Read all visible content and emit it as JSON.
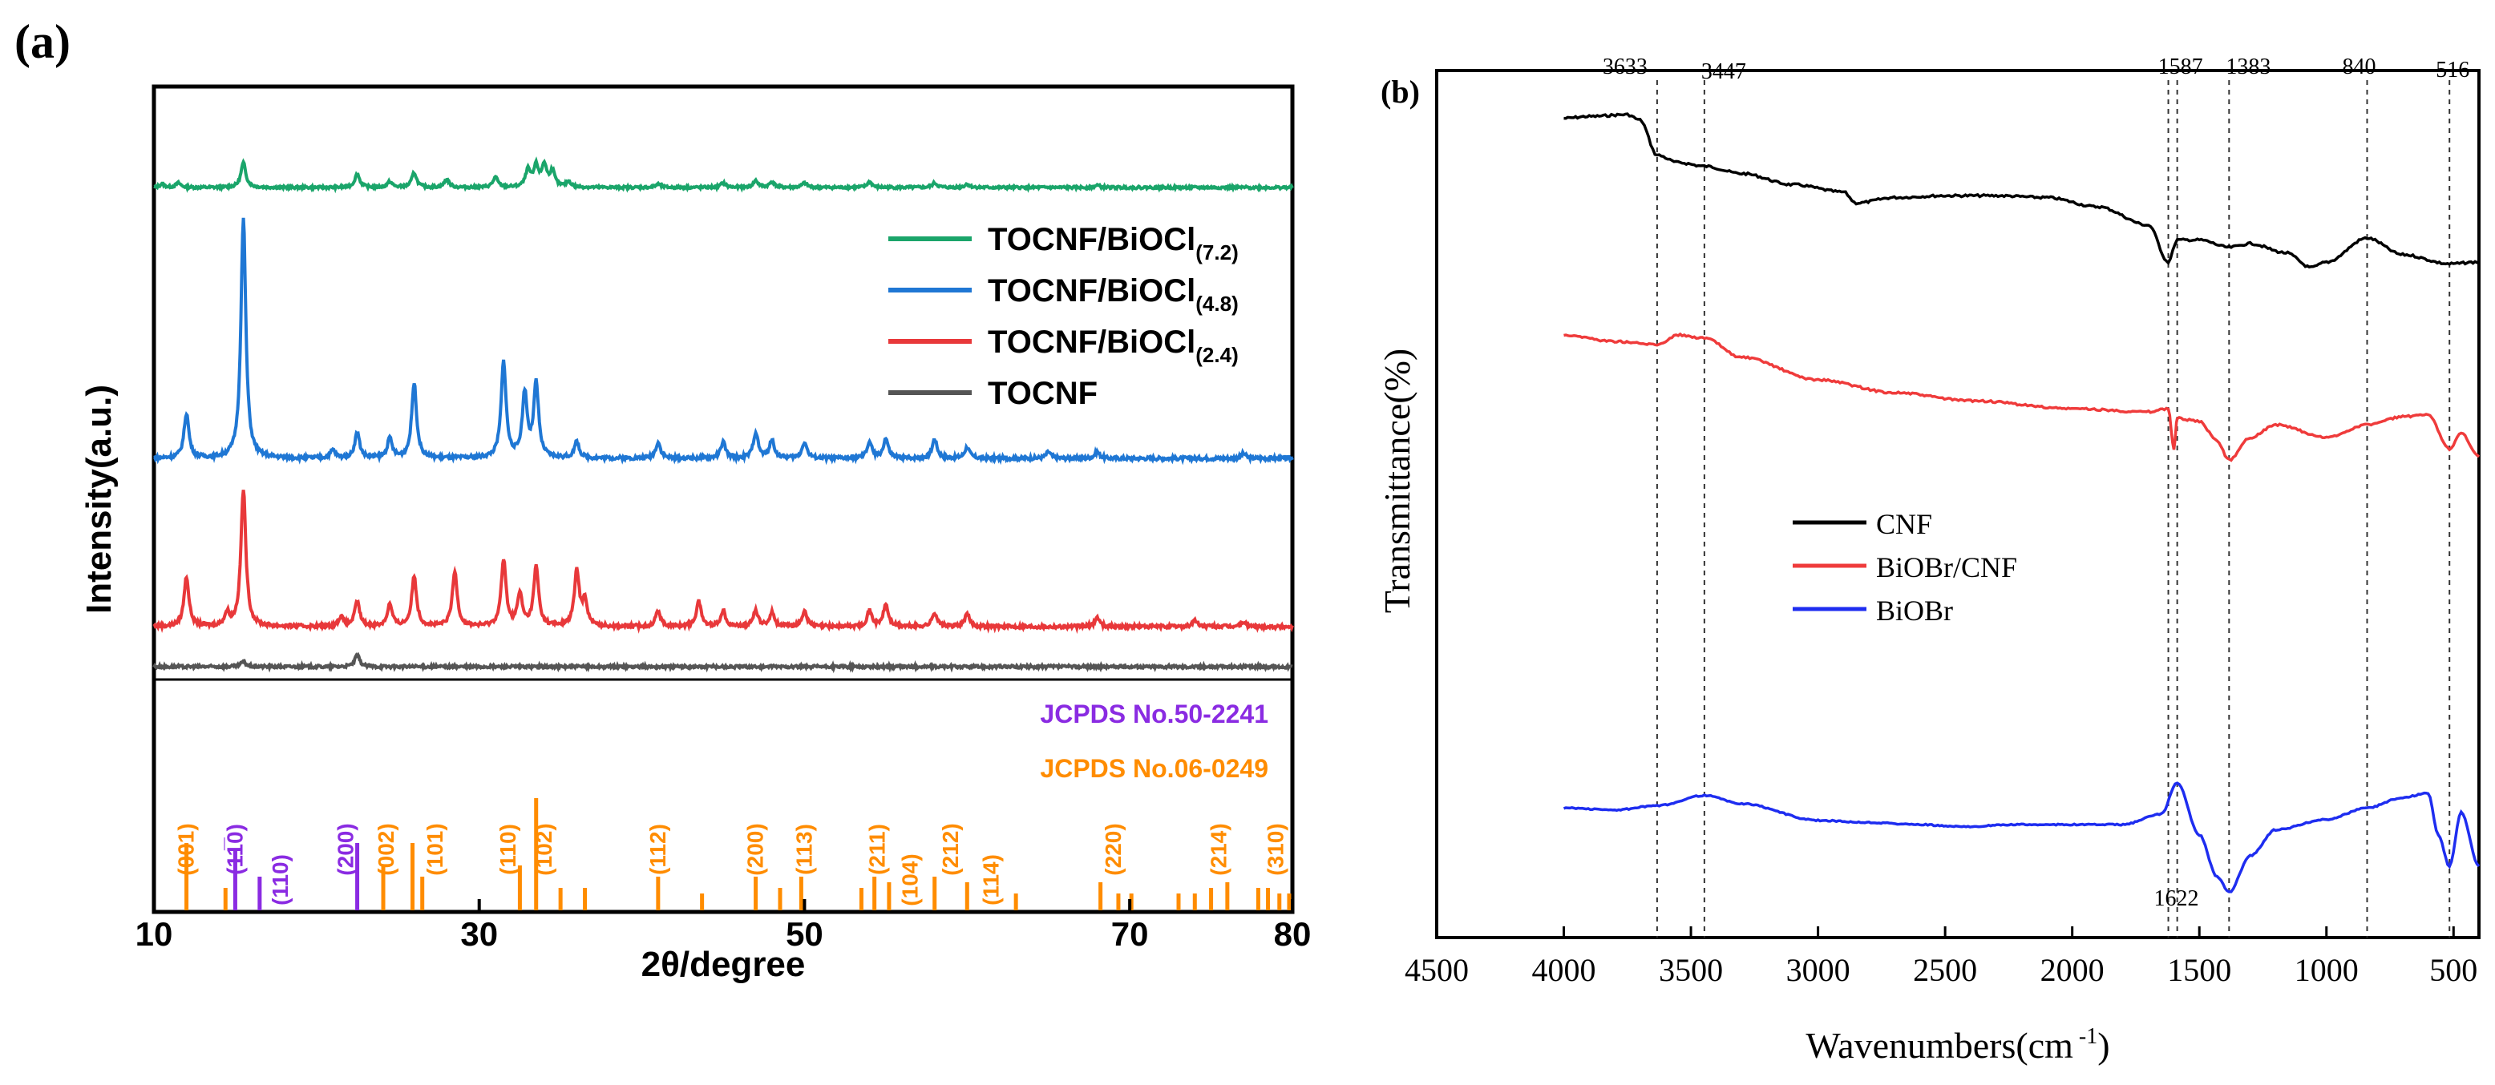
{
  "chart_data": [
    {
      "panel": "(a)",
      "type": "line",
      "xlabel": "2θ/degree",
      "ylabel": "Intensity(a.u.)",
      "xlim": [
        10,
        80
      ],
      "xticks": [
        10,
        30,
        50,
        70,
        80
      ],
      "legend_position": "top-right",
      "series": [
        {
          "name": "TOCNF/BiOCl",
          "subscript": "(7.2)",
          "color": "#1aa56a",
          "peaks": [
            [
              10.5,
              3
            ],
            [
              11.5,
              4
            ],
            [
              15.5,
              22
            ],
            [
              22.5,
              12
            ],
            [
              24.5,
              5
            ],
            [
              26.0,
              13
            ],
            [
              28.0,
              7
            ],
            [
              31.0,
              9
            ],
            [
              33.0,
              15
            ],
            [
              33.5,
              18
            ],
            [
              34.0,
              19
            ],
            [
              34.5,
              14
            ],
            [
              35.5,
              5
            ],
            [
              41.0,
              3
            ],
            [
              45.0,
              4
            ],
            [
              47.0,
              6
            ],
            [
              48.0,
              5
            ],
            [
              50.0,
              4
            ],
            [
              54.0,
              5
            ],
            [
              58.0,
              4
            ],
            [
              60.0,
              3
            ],
            [
              68.0,
              2
            ]
          ]
        },
        {
          "name": "TOCNF/BiOCl",
          "subscript": "(4.8)",
          "color": "#1f77d4",
          "peaks": [
            [
              12.0,
              28
            ],
            [
              15.5,
              150
            ],
            [
              21.0,
              5
            ],
            [
              22.5,
              16
            ],
            [
              24.5,
              12
            ],
            [
              26.0,
              47
            ],
            [
              31.5,
              60
            ],
            [
              32.8,
              40
            ],
            [
              33.5,
              46
            ],
            [
              36.0,
              10
            ],
            [
              41.0,
              10
            ],
            [
              45.0,
              10
            ],
            [
              47.0,
              16
            ],
            [
              48.0,
              11
            ],
            [
              50.0,
              10
            ],
            [
              54.0,
              10
            ],
            [
              55.0,
              12
            ],
            [
              58.0,
              12
            ],
            [
              60.0,
              7
            ],
            [
              65.0,
              4
            ],
            [
              68.0,
              4
            ],
            [
              77.0,
              3
            ]
          ]
        },
        {
          "name": "TOCNF/BiOCl",
          "subscript": "(2.4)",
          "color": "#e8383a",
          "peaks": [
            [
              12.0,
              32
            ],
            [
              14.5,
              8
            ],
            [
              15.5,
              88
            ],
            [
              21.5,
              6
            ],
            [
              22.5,
              16
            ],
            [
              24.5,
              14
            ],
            [
              26.0,
              32
            ],
            [
              28.5,
              35
            ],
            [
              31.5,
              42
            ],
            [
              32.5,
              20
            ],
            [
              33.5,
              38
            ],
            [
              36.0,
              35
            ],
            [
              36.5,
              16
            ],
            [
              41.0,
              10
            ],
            [
              43.5,
              16
            ],
            [
              45.0,
              10
            ],
            [
              47.0,
              10
            ],
            [
              48.0,
              9
            ],
            [
              50.0,
              10
            ],
            [
              54.0,
              10
            ],
            [
              55.0,
              14
            ],
            [
              58.0,
              9
            ],
            [
              60.0,
              8
            ],
            [
              68.0,
              6
            ],
            [
              74.0,
              4
            ],
            [
              77.0,
              3
            ]
          ]
        },
        {
          "name": "TOCNF",
          "subscript": "",
          "color": "#555555",
          "peaks": [
            [
              15.5,
              4
            ],
            [
              22.5,
              9
            ]
          ]
        }
      ],
      "reference_labels": [
        "JCPDS No.50-2241",
        "JCPDS No.06-0249"
      ],
      "reference_colors": {
        "jcpds_50_2241": "#8a2be2",
        "jcpds_06_0249": "#ff8c00"
      },
      "reference_lines": [
        {
          "x": 12.0,
          "h": 0.6,
          "ref": "06-0249"
        },
        {
          "x": 15.0,
          "h": 0.55,
          "ref": "50-2241"
        },
        {
          "x": 16.5,
          "h": 0.3,
          "ref": "50-2241"
        },
        {
          "x": 22.5,
          "h": 0.6,
          "ref": "50-2241"
        },
        {
          "x": 14.4,
          "h": 0.2,
          "ref": "06-0249"
        },
        {
          "x": 24.1,
          "h": 0.4,
          "ref": "06-0249"
        },
        {
          "x": 25.9,
          "h": 0.6,
          "ref": "06-0249"
        },
        {
          "x": 26.5,
          "h": 0.3,
          "ref": "06-0249"
        },
        {
          "x": 32.5,
          "h": 0.4,
          "ref": "06-0249"
        },
        {
          "x": 33.5,
          "h": 1.0,
          "ref": "06-0249"
        },
        {
          "x": 35.0,
          "h": 0.2,
          "ref": "06-0249"
        },
        {
          "x": 36.5,
          "h": 0.2,
          "ref": "06-0249"
        },
        {
          "x": 41.0,
          "h": 0.3,
          "ref": "06-0249"
        },
        {
          "x": 43.7,
          "h": 0.15,
          "ref": "06-0249"
        },
        {
          "x": 47.0,
          "h": 0.3,
          "ref": "06-0249"
        },
        {
          "x": 48.5,
          "h": 0.2,
          "ref": "06-0249"
        },
        {
          "x": 49.8,
          "h": 0.3,
          "ref": "06-0249"
        },
        {
          "x": 53.5,
          "h": 0.2,
          "ref": "06-0249"
        },
        {
          "x": 54.3,
          "h": 0.3,
          "ref": "06-0249"
        },
        {
          "x": 55.2,
          "h": 0.25,
          "ref": "06-0249"
        },
        {
          "x": 58.0,
          "h": 0.3,
          "ref": "06-0249"
        },
        {
          "x": 60.0,
          "h": 0.25,
          "ref": "06-0249"
        },
        {
          "x": 63.0,
          "h": 0.15,
          "ref": "06-0249"
        },
        {
          "x": 68.2,
          "h": 0.25,
          "ref": "06-0249"
        },
        {
          "x": 69.3,
          "h": 0.15,
          "ref": "06-0249"
        },
        {
          "x": 70.1,
          "h": 0.15,
          "ref": "06-0249"
        },
        {
          "x": 73.0,
          "h": 0.15,
          "ref": "06-0249"
        },
        {
          "x": 74.0,
          "h": 0.15,
          "ref": "06-0249"
        },
        {
          "x": 75.0,
          "h": 0.2,
          "ref": "06-0249"
        },
        {
          "x": 76.0,
          "h": 0.25,
          "ref": "06-0249"
        },
        {
          "x": 77.9,
          "h": 0.2,
          "ref": "06-0249"
        },
        {
          "x": 78.5,
          "h": 0.2,
          "ref": "06-0249"
        },
        {
          "x": 79.2,
          "h": 0.15,
          "ref": "06-0249"
        },
        {
          "x": 79.8,
          "h": 0.15,
          "ref": "06-0249"
        }
      ],
      "miller_labels": [
        {
          "x": 12.0,
          "text": "(001)",
          "ref": "06-0249",
          "row": 0
        },
        {
          "x": 15.0,
          "text": "(11̅0)",
          "ref": "50-2241",
          "row": 0
        },
        {
          "x": 17.8,
          "text": "(110)",
          "ref": "50-2241",
          "row": 1
        },
        {
          "x": 21.8,
          "text": "(200)",
          "ref": "50-2241",
          "row": 0
        },
        {
          "x": 24.3,
          "text": "(002)",
          "ref": "06-0249",
          "row": 0
        },
        {
          "x": 27.3,
          "text": "(101)",
          "ref": "06-0249",
          "row": 0
        },
        {
          "x": 31.8,
          "text": "(110)",
          "ref": "06-0249",
          "row": 0
        },
        {
          "x": 34.0,
          "text": "(102)",
          "ref": "06-0249",
          "row": 0
        },
        {
          "x": 41.0,
          "text": "(112)",
          "ref": "06-0249",
          "row": 0
        },
        {
          "x": 47.0,
          "text": "(200)",
          "ref": "06-0249",
          "row": 0
        },
        {
          "x": 50.0,
          "text": "(113)",
          "ref": "06-0249",
          "row": 0
        },
        {
          "x": 54.5,
          "text": "(211)",
          "ref": "06-0249",
          "row": 0
        },
        {
          "x": 56.5,
          "text": "(104)",
          "ref": "06-0249",
          "row": 1
        },
        {
          "x": 59.0,
          "text": "(212)",
          "ref": "06-0249",
          "row": 0
        },
        {
          "x": 61.5,
          "text": "(114)",
          "ref": "06-0249",
          "row": 1
        },
        {
          "x": 69.0,
          "text": "(220)",
          "ref": "06-0249",
          "row": 0
        },
        {
          "x": 75.5,
          "text": "(214)",
          "ref": "06-0249",
          "row": 0
        },
        {
          "x": 79.0,
          "text": "(310)",
          "ref": "06-0249",
          "row": 0
        }
      ]
    },
    {
      "panel": "(b)",
      "type": "line",
      "xlabel": "Wavenumbers(cm",
      "xlabel_sup": " -1",
      "xlabel_end": ")",
      "ylabel": "Transmittance(%)",
      "xlim": [
        4500,
        400
      ],
      "xticks": [
        4500,
        4000,
        3500,
        3000,
        2500,
        2000,
        1500,
        1000,
        500
      ],
      "legend_position": "center-left",
      "vlines": [
        {
          "x": 3633,
          "label": "3633"
        },
        {
          "x": 3447,
          "label": "3447"
        },
        {
          "x": 1622,
          "label": "1622"
        },
        {
          "x": 1587,
          "label": "1587"
        },
        {
          "x": 1383,
          "label": "1383"
        },
        {
          "x": 840,
          "label": "840"
        },
        {
          "x": 516,
          "label": "516"
        }
      ],
      "series": [
        {
          "name": "CNF",
          "color": "#000000",
          "points": [
            [
              4000,
              0.12
            ],
            [
              3900,
              0.11
            ],
            [
              3750,
              0.1
            ],
            [
              3700,
              0.13
            ],
            [
              3633,
              0.32
            ],
            [
              3550,
              0.36
            ],
            [
              3447,
              0.38
            ],
            [
              3300,
              0.42
            ],
            [
              3100,
              0.48
            ],
            [
              2900,
              0.52
            ],
            [
              2850,
              0.58
            ],
            [
              2700,
              0.55
            ],
            [
              2500,
              0.54
            ],
            [
              2300,
              0.54
            ],
            [
              2100,
              0.55
            ],
            [
              1900,
              0.6
            ],
            [
              1700,
              0.7
            ],
            [
              1622,
              0.9
            ],
            [
              1587,
              0.78
            ],
            [
              1500,
              0.78
            ],
            [
              1383,
              0.82
            ],
            [
              1300,
              0.8
            ],
            [
              1160,
              0.85
            ],
            [
              1060,
              0.93
            ],
            [
              1000,
              0.9
            ],
            [
              840,
              0.77
            ],
            [
              700,
              0.86
            ],
            [
              516,
              0.91
            ],
            [
              400,
              0.9
            ]
          ]
        },
        {
          "name": "BiOBr/CNF",
          "color": "#ef3b3b",
          "points": [
            [
              4000,
              0.24
            ],
            [
              3800,
              0.28
            ],
            [
              3633,
              0.3
            ],
            [
              3550,
              0.24
            ],
            [
              3447,
              0.26
            ],
            [
              3300,
              0.38
            ],
            [
              3000,
              0.52
            ],
            [
              2700,
              0.6
            ],
            [
              2400,
              0.65
            ],
            [
              2000,
              0.7
            ],
            [
              1700,
              0.72
            ],
            [
              1622,
              0.7
            ],
            [
              1600,
              0.95
            ],
            [
              1587,
              0.76
            ],
            [
              1500,
              0.78
            ],
            [
              1430,
              0.9
            ],
            [
              1383,
              1.02
            ],
            [
              1300,
              0.88
            ],
            [
              1200,
              0.8
            ],
            [
              1000,
              0.88
            ],
            [
              840,
              0.8
            ],
            [
              700,
              0.75
            ],
            [
              600,
              0.74
            ],
            [
              516,
              0.95
            ],
            [
              470,
              0.85
            ],
            [
              400,
              1.0
            ]
          ]
        },
        {
          "name": "BiOBr",
          "color": "#1e2df0",
          "points": [
            [
              4000,
              0.14
            ],
            [
              3800,
              0.16
            ],
            [
              3633,
              0.12
            ],
            [
              3447,
              0.02
            ],
            [
              3300,
              0.1
            ],
            [
              3000,
              0.26
            ],
            [
              2800,
              0.28
            ],
            [
              2600,
              0.3
            ],
            [
              2450,
              0.32
            ],
            [
              2200,
              0.3
            ],
            [
              1800,
              0.3
            ],
            [
              1650,
              0.2
            ],
            [
              1587,
              -0.1
            ],
            [
              1500,
              0.4
            ],
            [
              1430,
              0.8
            ],
            [
              1383,
              0.95
            ],
            [
              1300,
              0.6
            ],
            [
              1200,
              0.35
            ],
            [
              1000,
              0.25
            ],
            [
              840,
              0.14
            ],
            [
              700,
              0.04
            ],
            [
              600,
              0.0
            ],
            [
              560,
              0.4
            ],
            [
              516,
              0.7
            ],
            [
              470,
              0.18
            ],
            [
              400,
              0.7
            ]
          ]
        }
      ]
    }
  ]
}
